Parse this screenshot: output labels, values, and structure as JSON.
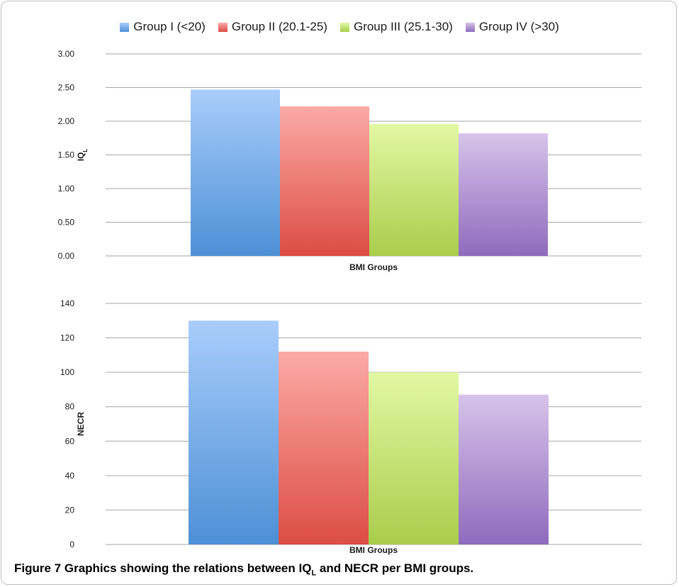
{
  "legend": [
    {
      "label": "Group I (<20)",
      "color": "#5b9bd5"
    },
    {
      "label": "Group II (20.1-25)",
      "color": "#e06666"
    },
    {
      "label": "Group III (25.1-30)",
      "color": "#b3d96e"
    },
    {
      "label": "Group IV (>30)",
      "color": "#a387c9"
    }
  ],
  "chart_data": [
    {
      "type": "bar",
      "xlabel": "BMI Groups",
      "ylabel": "IQ",
      "ylabel_sub": "L",
      "ylim": [
        0,
        3
      ],
      "yticks": [
        "0.00",
        "0.50",
        "1.00",
        "1.50",
        "2.00",
        "2.50",
        "3.00"
      ],
      "ytick_values": [
        0,
        0.5,
        1.0,
        1.5,
        2.0,
        2.5,
        3.0
      ],
      "grid": true,
      "series": [
        {
          "name": "Group I (<20)",
          "values": [
            2.47
          ]
        },
        {
          "name": "Group II (20.1-25)",
          "values": [
            2.22
          ]
        },
        {
          "name": "Group III (25.1-30)",
          "values": [
            1.96
          ]
        },
        {
          "name": "Group IV (>30)",
          "values": [
            1.82
          ]
        }
      ]
    },
    {
      "type": "bar",
      "xlabel": "BMI Groups",
      "ylabel": "NECR",
      "ylim": [
        0,
        140
      ],
      "yticks": [
        "0",
        "20",
        "40",
        "60",
        "80",
        "100",
        "120",
        "140"
      ],
      "ytick_values": [
        0,
        20,
        40,
        60,
        80,
        100,
        120,
        140
      ],
      "grid": true,
      "series": [
        {
          "name": "Group I (<20)",
          "values": [
            130
          ]
        },
        {
          "name": "Group II (20.1-25)",
          "values": [
            112
          ]
        },
        {
          "name": "Group III (25.1-30)",
          "values": [
            100
          ]
        },
        {
          "name": "Group IV (>30)",
          "values": [
            87
          ]
        }
      ]
    }
  ],
  "colors": {
    "series_top": [
      "#a9cdfb",
      "#fcaaa5",
      "#e2f8a4",
      "#d7c3ea"
    ],
    "series_bottom": [
      "#4d90d6",
      "#dc4d45",
      "#a9cd4b",
      "#8f6bbd"
    ]
  },
  "caption": {
    "prefix": "Figure 7",
    "text_before": "Graphics showing the relations between IQ",
    "sub": "L",
    "text_after": "and NECR per BMI groups."
  }
}
